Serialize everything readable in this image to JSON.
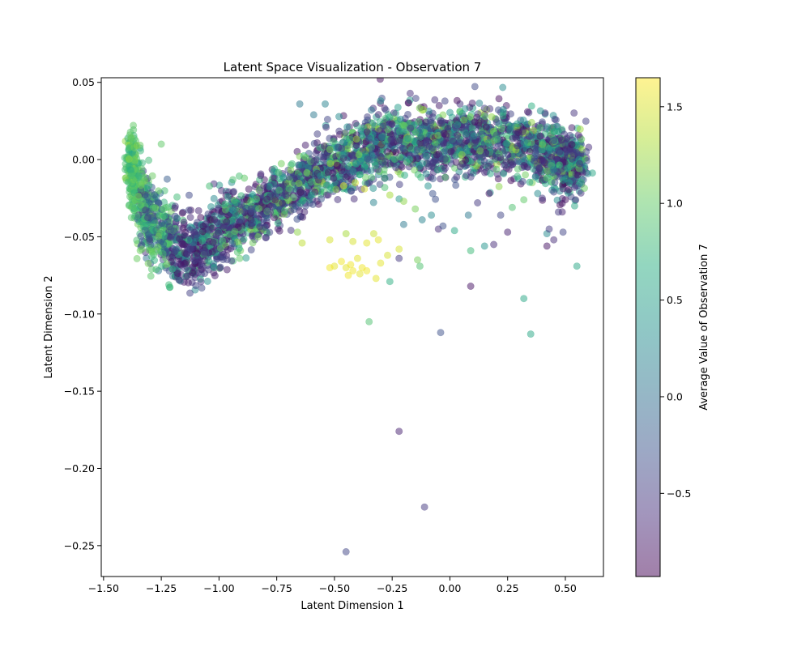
{
  "chart_data": {
    "type": "scatter",
    "title": "Latent Space Visualization - Observation 7",
    "xlabel": "Latent Dimension 1",
    "ylabel": "Latent Dimension 2",
    "xlim": [
      -1.51,
      0.665
    ],
    "ylim": [
      -0.27,
      0.053
    ],
    "x_ticks": [
      -1.5,
      -1.25,
      -1.0,
      -0.75,
      -0.5,
      -0.25,
      0.0,
      0.25,
      0.5
    ],
    "x_tick_labels": [
      "−1.50",
      "−1.25",
      "−1.00",
      "−0.75",
      "−0.50",
      "−0.25",
      "0.00",
      "0.25",
      "0.50"
    ],
    "y_ticks": [
      0.05,
      0.0,
      -0.05,
      -0.1,
      -0.15,
      -0.2,
      -0.25
    ],
    "y_tick_labels": [
      "0.05",
      "0.00",
      "−0.05",
      "−0.10",
      "−0.15",
      "−0.20",
      "−0.25"
    ],
    "colorbar": {
      "label": "Average Value of Observation 7",
      "colormap": "viridis",
      "alpha": 0.5,
      "range": [
        -0.93,
        1.65
      ],
      "ticks": [
        1.5,
        1.0,
        0.5,
        0.0,
        -0.5
      ],
      "tick_labels": [
        "1.5",
        "1.0",
        "0.5",
        "0.0",
        "−0.5"
      ]
    },
    "grid": false,
    "legend": "none",
    "cluster_density": {
      "arm_center_x": [
        -1.39,
        -1.37,
        -1.33,
        -1.28,
        -1.22,
        -1.16,
        -1.1,
        -1.04,
        -0.97,
        -0.9,
        -0.82,
        -0.74,
        -0.66,
        -0.58,
        -0.5,
        -0.42,
        -0.34,
        -0.26,
        -0.18,
        -0.1,
        -0.02,
        0.06,
        0.14,
        0.22,
        0.3,
        0.38,
        0.45,
        0.5,
        0.54,
        0.56
      ],
      "arm_center_y": [
        0.004,
        -0.012,
        -0.03,
        -0.043,
        -0.053,
        -0.059,
        -0.058,
        -0.052,
        -0.045,
        -0.038,
        -0.031,
        -0.024,
        -0.016,
        -0.009,
        -0.003,
        0.002,
        0.006,
        0.009,
        0.011,
        0.012,
        0.012,
        0.013,
        0.013,
        0.012,
        0.01,
        0.006,
        0.002,
        -0.001,
        -0.003,
        -0.004
      ]
    },
    "points": [
      {
        "x": -0.45,
        "y": -0.254,
        "v": -0.4
      },
      {
        "x": -0.11,
        "y": -0.225,
        "v": -0.5
      },
      {
        "x": -0.22,
        "y": -0.176,
        "v": -0.7
      },
      {
        "x": 0.35,
        "y": -0.113,
        "v": 0.6
      },
      {
        "x": -0.04,
        "y": -0.112,
        "v": -0.3
      },
      {
        "x": -0.35,
        "y": -0.105,
        "v": 0.9
      },
      {
        "x": 0.32,
        "y": -0.09,
        "v": 0.6
      },
      {
        "x": 0.09,
        "y": -0.082,
        "v": -0.8
      },
      {
        "x": 0.55,
        "y": -0.069,
        "v": 0.6
      },
      {
        "x": -0.26,
        "y": -0.079,
        "v": 0.7
      },
      {
        "x": -0.45,
        "y": -0.07,
        "v": 1.55
      },
      {
        "x": -0.42,
        "y": -0.072,
        "v": 1.6
      },
      {
        "x": -0.39,
        "y": -0.074,
        "v": 1.55
      },
      {
        "x": -0.36,
        "y": -0.072,
        "v": 1.6
      },
      {
        "x": -0.32,
        "y": -0.077,
        "v": 1.55
      },
      {
        "x": -0.47,
        "y": -0.066,
        "v": 1.6
      },
      {
        "x": -0.5,
        "y": -0.069,
        "v": 1.55
      },
      {
        "x": -0.52,
        "y": -0.07,
        "v": 1.6
      },
      {
        "x": -0.43,
        "y": -0.068,
        "v": 1.6
      },
      {
        "x": -0.4,
        "y": -0.064,
        "v": 1.55
      },
      {
        "x": -0.38,
        "y": -0.07,
        "v": 1.6
      },
      {
        "x": -0.44,
        "y": -0.075,
        "v": 1.6
      },
      {
        "x": -0.3,
        "y": -0.067,
        "v": 1.55
      },
      {
        "x": -0.27,
        "y": -0.062,
        "v": 1.5
      },
      {
        "x": -0.33,
        "y": -0.048,
        "v": 1.45
      },
      {
        "x": -0.31,
        "y": -0.052,
        "v": 1.55
      },
      {
        "x": -0.36,
        "y": -0.054,
        "v": 1.55
      },
      {
        "x": -0.42,
        "y": -0.053,
        "v": 1.5
      },
      {
        "x": -0.52,
        "y": -0.052,
        "v": 1.5
      },
      {
        "x": -0.22,
        "y": -0.058,
        "v": 1.5
      },
      {
        "x": -0.22,
        "y": -0.064,
        "v": -0.5
      },
      {
        "x": -0.13,
        "y": -0.069,
        "v": 0.9
      },
      {
        "x": -0.14,
        "y": -0.065,
        "v": 1.1
      },
      {
        "x": 0.09,
        "y": -0.059,
        "v": 0.8
      },
      {
        "x": 0.15,
        "y": -0.056,
        "v": 0.4
      },
      {
        "x": 0.19,
        "y": -0.055,
        "v": -0.6
      },
      {
        "x": 0.25,
        "y": -0.047,
        "v": -0.7
      },
      {
        "x": 0.42,
        "y": -0.056,
        "v": -0.8
      },
      {
        "x": 0.45,
        "y": -0.052,
        "v": -0.6
      },
      {
        "x": 0.49,
        "y": -0.047,
        "v": -0.4
      },
      {
        "x": 0.47,
        "y": -0.034,
        "v": -0.5
      },
      {
        "x": 0.42,
        "y": -0.048,
        "v": 0.3
      },
      {
        "x": 0.43,
        "y": -0.045,
        "v": -0.5
      },
      {
        "x": 0.54,
        "y": -0.03,
        "v": 0.6
      },
      {
        "x": 0.5,
        "y": -0.026,
        "v": -0.8
      },
      {
        "x": -0.65,
        "y": 0.036,
        "v": 0.1
      },
      {
        "x": -0.54,
        "y": 0.036,
        "v": 0.2
      },
      {
        "x": -0.3,
        "y": 0.038,
        "v": 0.3
      },
      {
        "x": -0.59,
        "y": 0.029,
        "v": 0.1
      },
      {
        "x": -0.53,
        "y": 0.026,
        "v": -0.4
      },
      {
        "x": -0.34,
        "y": 0.032,
        "v": 0.1
      },
      {
        "x": -1.25,
        "y": 0.01,
        "v": 1.0
      },
      {
        "x": -0.64,
        "y": -0.054,
        "v": 1.4
      },
      {
        "x": -0.66,
        "y": -0.047,
        "v": 1.2
      },
      {
        "x": -0.45,
        "y": -0.048,
        "v": 1.3
      },
      {
        "x": -0.94,
        "y": -0.013,
        "v": 0.9
      },
      {
        "x": -0.89,
        "y": -0.012,
        "v": 1.0
      },
      {
        "x": -1.02,
        "y": -0.039,
        "v": -0.7
      },
      {
        "x": -0.92,
        "y": -0.06,
        "v": 0.9
      },
      {
        "x": -0.91,
        "y": -0.064,
        "v": 1.0
      },
      {
        "x": -0.05,
        "y": -0.045,
        "v": -0.6
      },
      {
        "x": -0.03,
        "y": -0.043,
        "v": -0.3
      },
      {
        "x": -0.2,
        "y": -0.042,
        "v": 0.1
      },
      {
        "x": -0.12,
        "y": -0.039,
        "v": 0.2
      },
      {
        "x": -0.08,
        "y": -0.036,
        "v": 0.3
      },
      {
        "x": 0.12,
        "y": -0.028,
        "v": -0.5
      },
      {
        "x": 0.17,
        "y": -0.022,
        "v": -0.8
      },
      {
        "x": 0.08,
        "y": -0.036,
        "v": 0.1
      },
      {
        "x": 0.02,
        "y": -0.046,
        "v": 0.6
      },
      {
        "x": 0.22,
        "y": -0.036,
        "v": -0.4
      },
      {
        "x": 0.27,
        "y": -0.031,
        "v": 0.9
      },
      {
        "x": 0.32,
        "y": -0.026,
        "v": 1.0
      },
      {
        "x": 0.38,
        "y": -0.022,
        "v": 0.3
      },
      {
        "x": 0.4,
        "y": -0.025,
        "v": -0.5
      },
      {
        "x": 0.45,
        "y": -0.021,
        "v": -0.4
      },
      {
        "x": 0.54,
        "y": -0.018,
        "v": -0.5
      },
      {
        "x": -0.26,
        "y": -0.023,
        "v": 1.3
      },
      {
        "x": -0.37,
        "y": -0.019,
        "v": 1.5
      },
      {
        "x": -0.46,
        "y": -0.017,
        "v": 1.55
      },
      {
        "x": -0.41,
        "y": -0.015,
        "v": 1.5
      },
      {
        "x": -0.2,
        "y": -0.027,
        "v": 1.2
      },
      {
        "x": -0.15,
        "y": -0.032,
        "v": 1.1
      }
    ]
  }
}
